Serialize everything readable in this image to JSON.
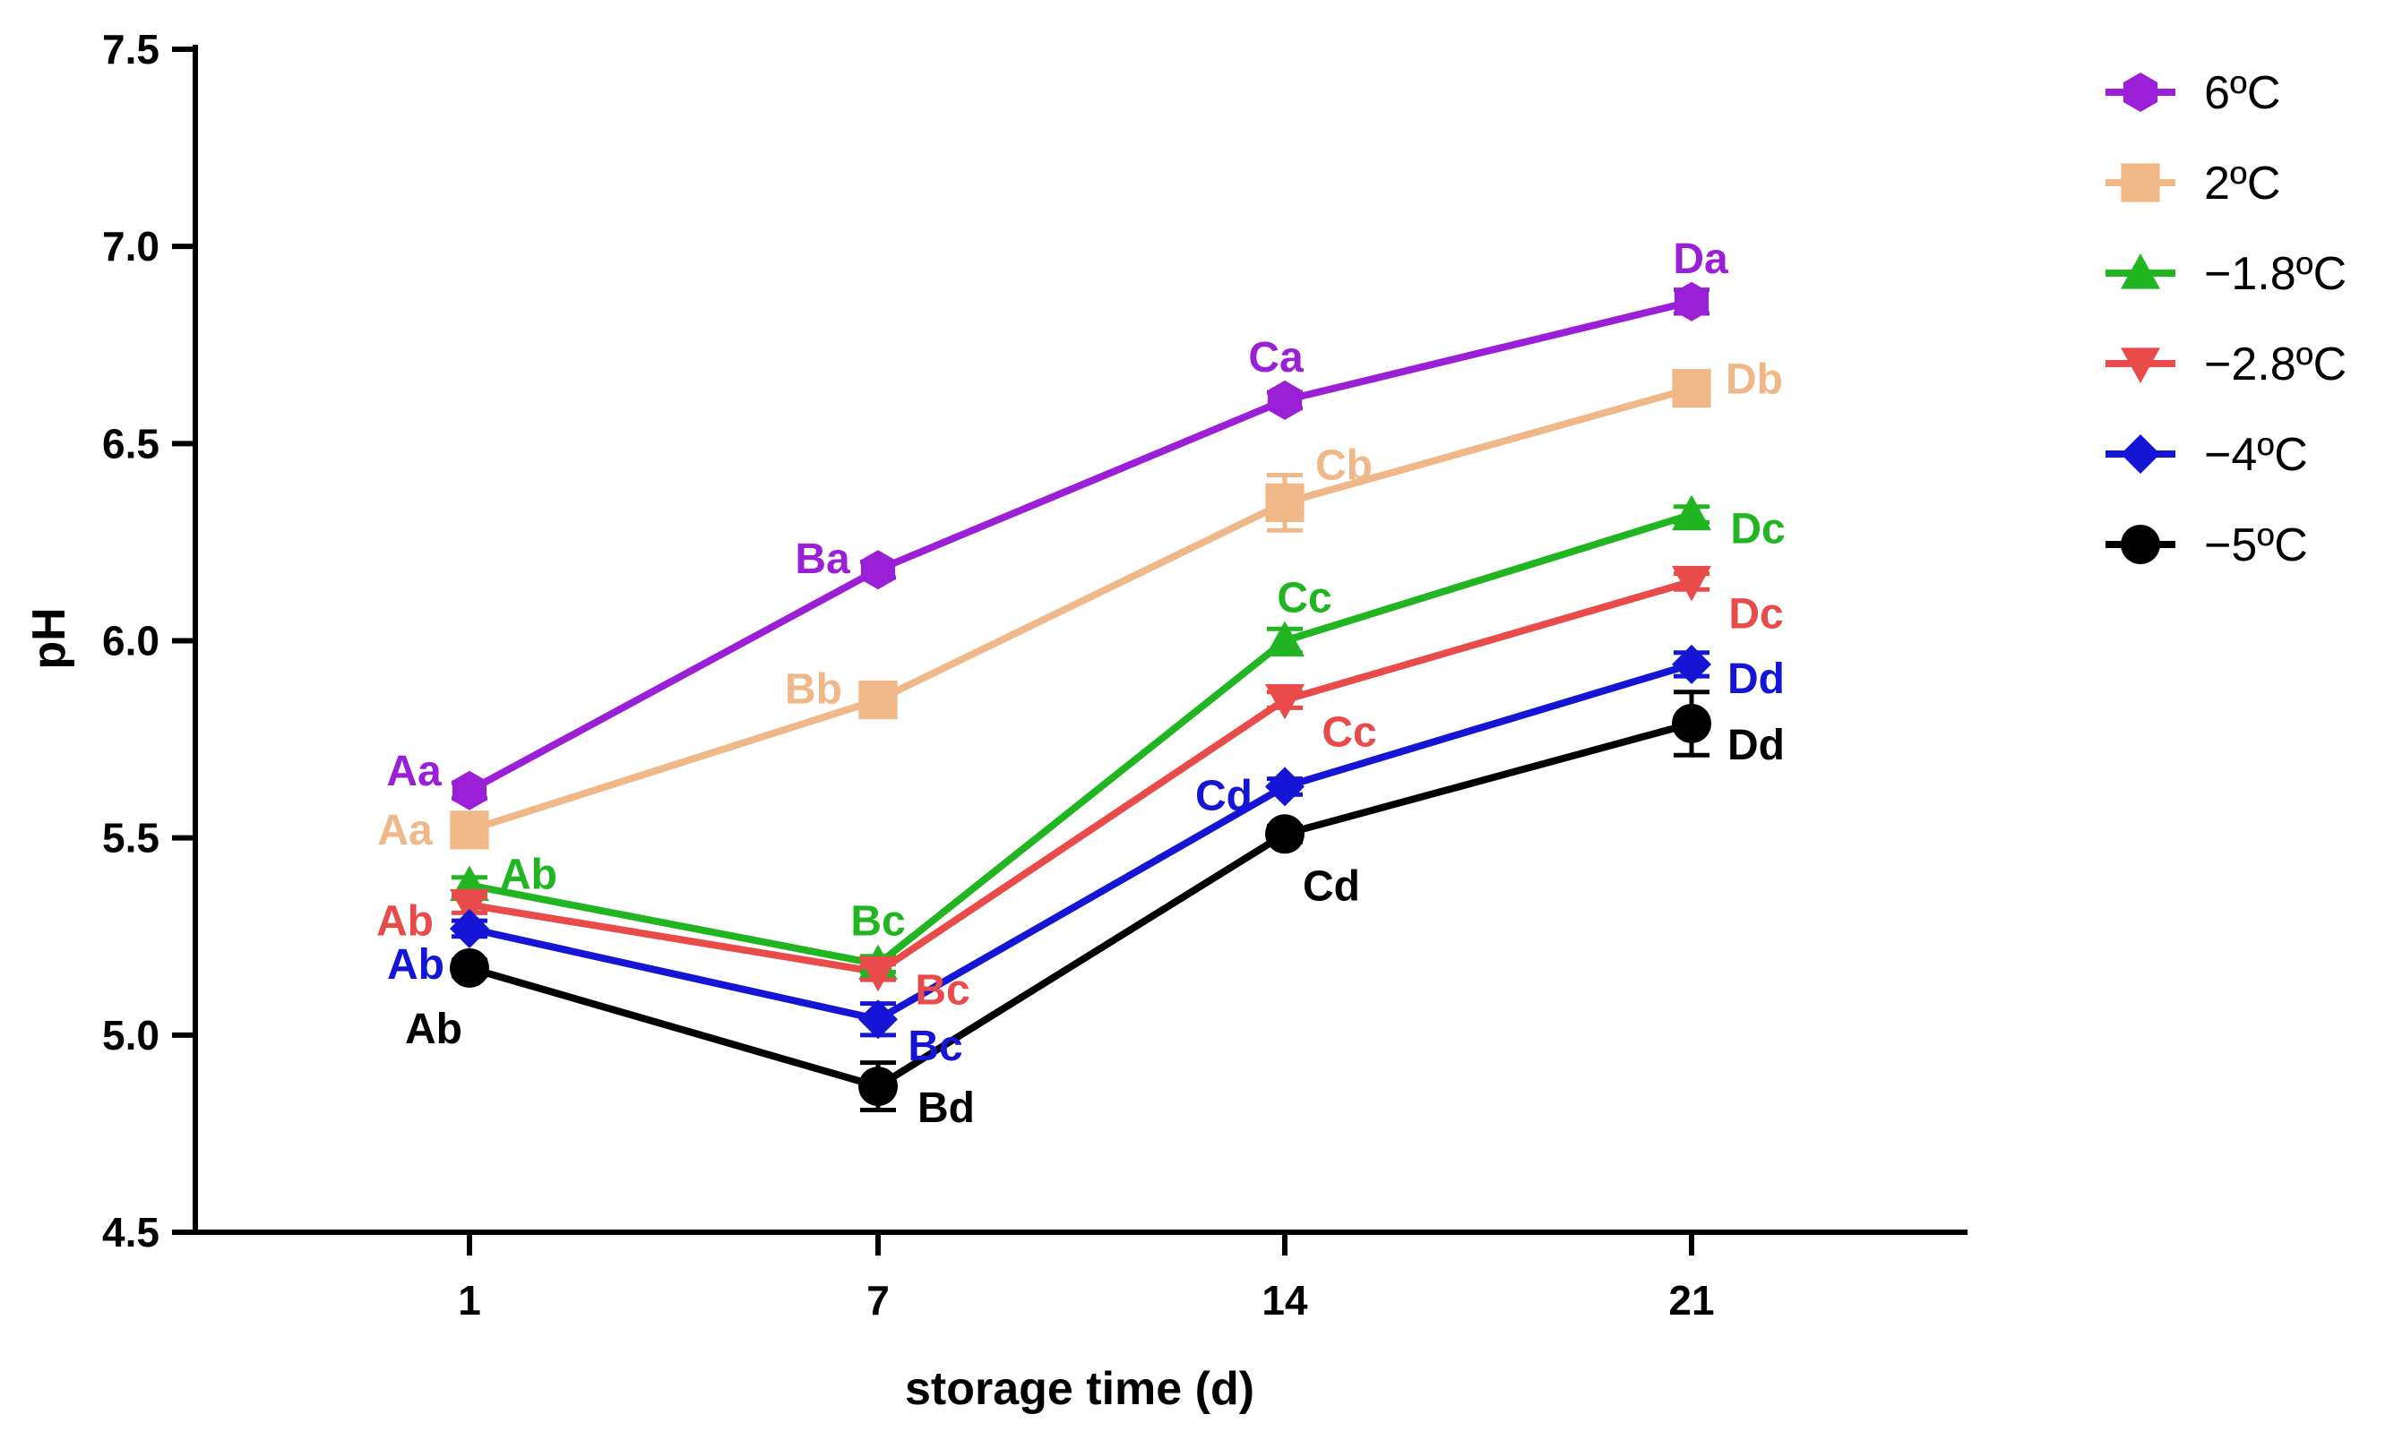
{
  "chart_data": {
    "type": "line",
    "title": "",
    "xlabel": "storage time (d)",
    "ylabel": "pH",
    "categories": [
      "1",
      "7",
      "14",
      "21"
    ],
    "x": [
      1,
      7,
      14,
      21
    ],
    "ylim": [
      4.5,
      7.5
    ],
    "yticks": [
      "4.5",
      "5.0",
      "5.5",
      "6.0",
      "6.5",
      "7.0",
      "7.5"
    ],
    "grid": false,
    "legend_position": "top-right",
    "series": [
      {
        "name": "6ºC",
        "color": "#9b1fd6",
        "marker": "hexagon",
        "values": [
          5.62,
          6.18,
          6.61,
          6.86
        ],
        "errors": [
          0.02,
          0.02,
          0.02,
          0.03
        ],
        "labels": [
          "Aa",
          "Ba",
          "Ca",
          "Da"
        ]
      },
      {
        "name": "2ºC",
        "color": "#f0b888",
        "marker": "square",
        "values": [
          5.52,
          5.85,
          6.35,
          6.64
        ],
        "errors": [
          0.03,
          0.02,
          0.07,
          0.02
        ],
        "labels": [
          "Aa",
          "Bb",
          "Cb",
          "Db"
        ]
      },
      {
        "name": "−1.8ºC",
        "color": "#22b522",
        "marker": "triangle-up",
        "values": [
          5.38,
          5.18,
          6.0,
          6.32
        ],
        "errors": [
          0.02,
          0.02,
          0.03,
          0.02
        ],
        "labels": [
          "Ab",
          "Bc",
          "Cc",
          "Dc"
        ]
      },
      {
        "name": "−2.8ºC",
        "color": "#e94b4b",
        "marker": "triangle-down",
        "values": [
          5.33,
          5.16,
          5.85,
          6.15
        ],
        "errors": [
          0.02,
          0.02,
          0.02,
          0.02
        ],
        "labels": [
          "Ab",
          "Bc",
          "Cc",
          "Dc"
        ]
      },
      {
        "name": "−4ºC",
        "color": "#1515d6",
        "marker": "diamond",
        "values": [
          5.27,
          5.04,
          5.63,
          5.94
        ],
        "errors": [
          0.02,
          0.04,
          0.02,
          0.03
        ],
        "labels": [
          "Ab",
          "Bc",
          "Cd",
          "Dd"
        ]
      },
      {
        "name": "−5ºC",
        "color": "#000000",
        "marker": "circle",
        "values": [
          5.17,
          4.87,
          5.51,
          5.79
        ],
        "errors": [
          0.02,
          0.06,
          0.02,
          0.08
        ],
        "labels": [
          "Ab",
          "Bd",
          "Cd",
          "Dd"
        ]
      }
    ]
  }
}
